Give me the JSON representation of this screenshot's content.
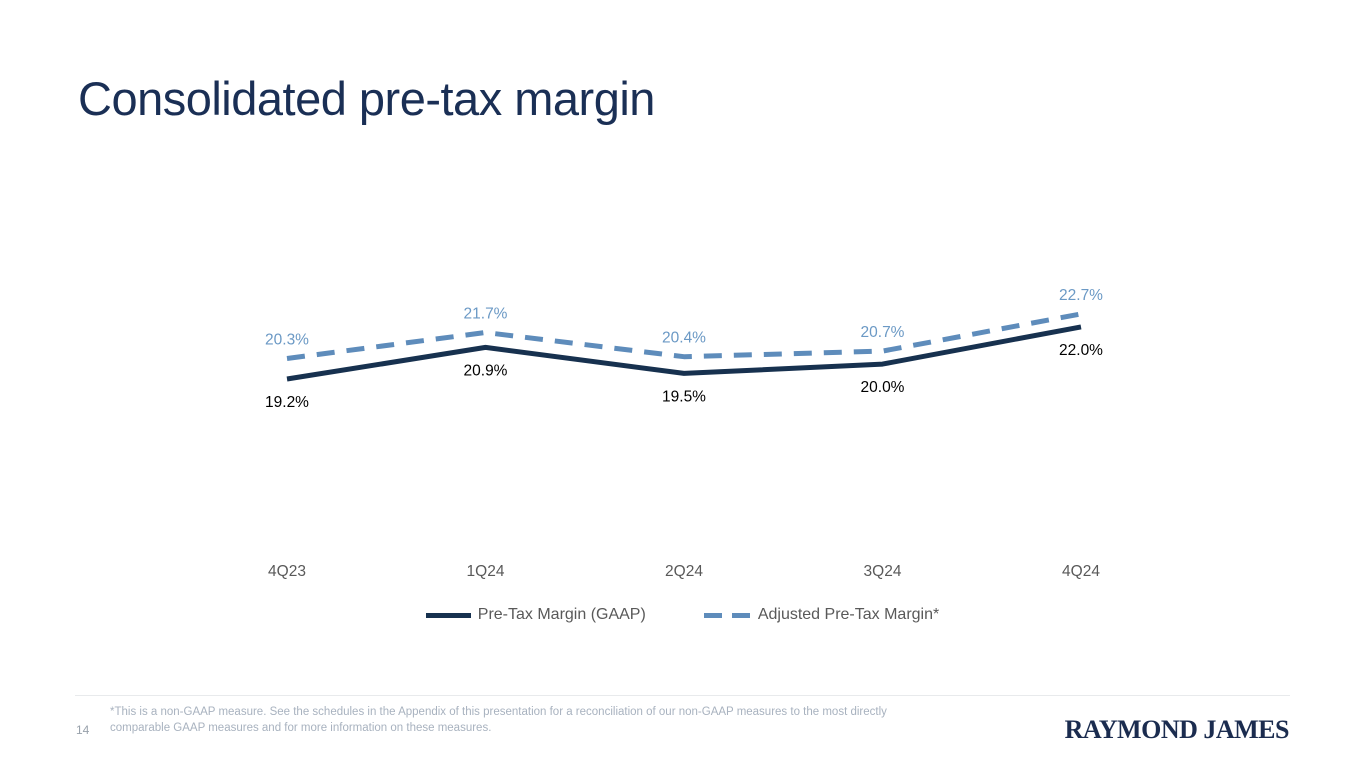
{
  "slide": {
    "title": "Consolidated pre-tax margin",
    "page_number": "14",
    "logo_text": "RAYMOND JAMES",
    "footnote_line1": "*This is a non-GAAP measure. See the schedules in the Appendix of this presentation for a reconciliation of our non-GAAP measures to the most directly",
    "footnote_line2": "comparable GAAP measures and for more information on these measures."
  },
  "colors": {
    "title_navy": "#1A2F55",
    "gaap_line": "#17314F",
    "gaap_label": "#000000",
    "adjusted_line": "#5E8CBB",
    "adjusted_label": "#6B99C5",
    "axis_label": "#595959",
    "legend_text": "#595959",
    "footnote_text": "#A8B2BF",
    "divider": "#E8EAEC",
    "logo_navy": "#1B2C4F"
  },
  "chart_data": {
    "type": "line",
    "title": "Consolidated pre-tax margin",
    "xlabel": "",
    "ylabel": "",
    "categories": [
      "4Q23",
      "1Q24",
      "2Q24",
      "3Q24",
      "4Q24"
    ],
    "series": [
      {
        "name": "Pre-Tax Margin (GAAP)",
        "values": [
          19.2,
          20.9,
          19.5,
          20.0,
          22.0
        ],
        "labels": [
          "19.2%",
          "20.9%",
          "19.5%",
          "20.0%",
          "22.0%"
        ],
        "line_style": "solid",
        "color": "#17314F",
        "label_color": "#000000",
        "label_position": "below"
      },
      {
        "name": "Adjusted Pre-Tax Margin*",
        "values": [
          20.3,
          21.7,
          20.4,
          20.7,
          22.7
        ],
        "labels": [
          "20.3%",
          "21.7%",
          "20.4%",
          "20.7%",
          "22.7%"
        ],
        "line_style": "dashed",
        "color": "#5E8CBB",
        "label_color": "#6B99C5",
        "label_position": "above"
      }
    ],
    "ylim": [
      18.5,
      23.5
    ],
    "grid": false,
    "y_axis_visible": false,
    "data_labels": true,
    "legend_position": "bottom"
  }
}
